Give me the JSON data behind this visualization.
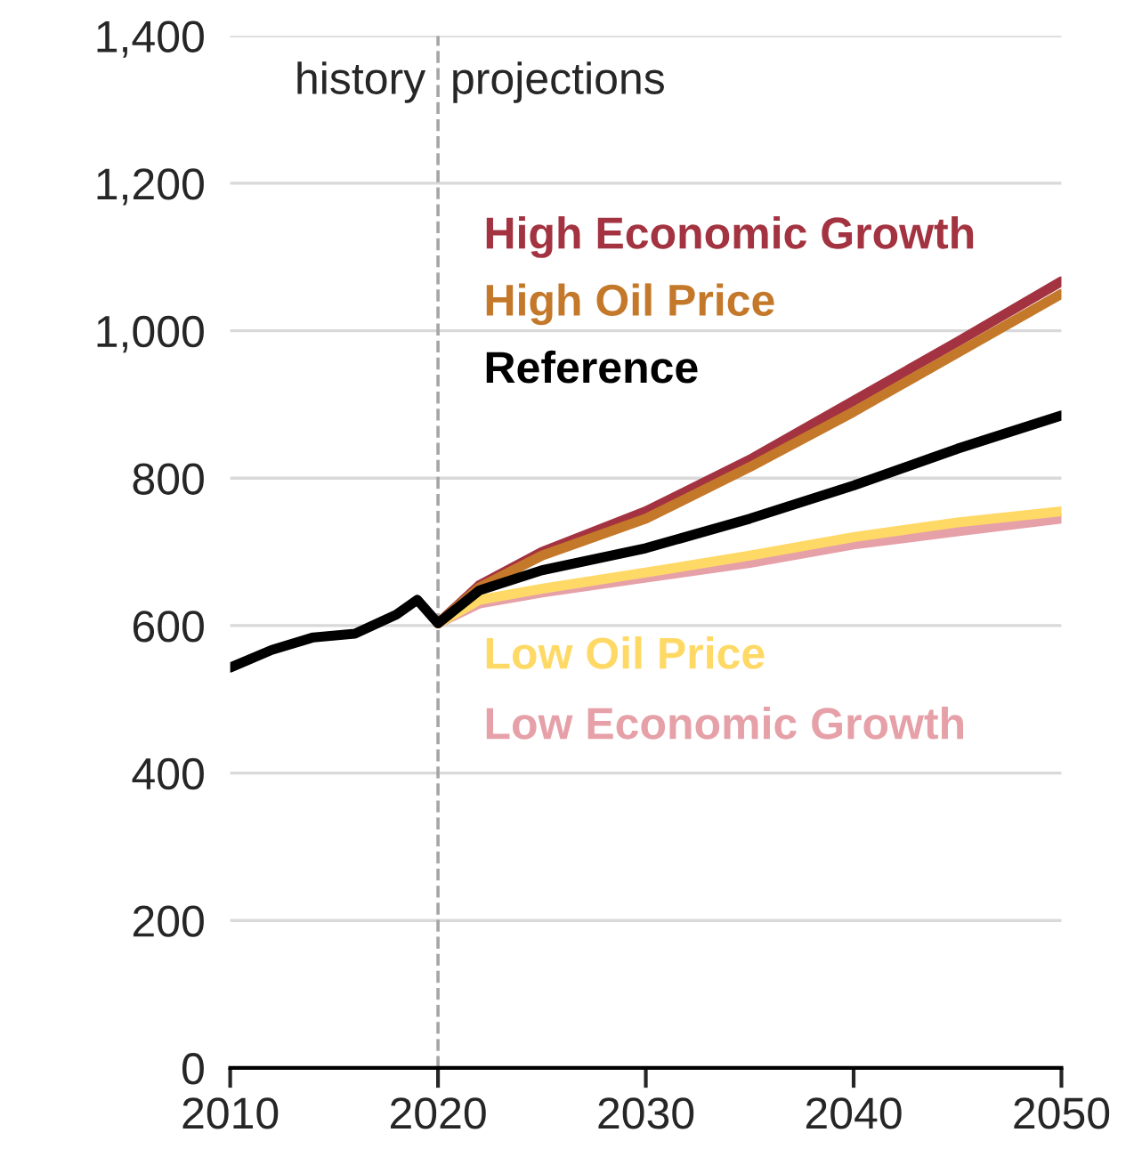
{
  "chart_data": {
    "type": "line",
    "xlim": [
      2010,
      2050
    ],
    "xticks": [
      2010,
      2020,
      2030,
      2040,
      2050
    ],
    "ylim": [
      0,
      1400
    ],
    "yticks": [
      0,
      {
        "value": 200,
        "label": "200"
      },
      {
        "value": 400,
        "label": "400"
      },
      {
        "value": 600,
        "label": "600"
      },
      {
        "value": 800,
        "label": "800"
      },
      {
        "value": 1000,
        "label": "1,000"
      },
      {
        "value": 1200,
        "label": "1,200"
      },
      {
        "value": 1400,
        "label": "1,400"
      }
    ],
    "grid": "y",
    "legend": false,
    "line_style": "solid",
    "ref_lines": [
      {
        "axis": "x",
        "value": 2020,
        "color": "#a6a6a6",
        "line_style": "dashed"
      }
    ],
    "annotations": [
      "history",
      "projections"
    ],
    "series": [
      {
        "name": "High Economic Growth",
        "color": "#a33340",
        "x": [
          2020,
          2022,
          2025,
          2030,
          2035,
          2040,
          2045,
          2050
        ],
        "values": [
          603,
          655,
          700,
          755,
          825,
          905,
          985,
          1067
        ]
      },
      {
        "name": "High Oil Price",
        "color": "#c4782a",
        "x": [
          2020,
          2022,
          2025,
          2030,
          2035,
          2040,
          2045,
          2050
        ],
        "values": [
          603,
          652,
          695,
          745,
          815,
          890,
          970,
          1050
        ]
      },
      {
        "name": "Low Economic Growth",
        "color": "#e6a0a8",
        "x": [
          2020,
          2022,
          2025,
          2030,
          2035,
          2040,
          2045,
          2050
        ],
        "values": [
          603,
          630,
          645,
          665,
          685,
          710,
          728,
          745
        ]
      },
      {
        "name": "Low Oil Price",
        "color": "#ffd966",
        "x": [
          2020,
          2022,
          2025,
          2030,
          2035,
          2040,
          2045,
          2050
        ],
        "values": [
          603,
          635,
          650,
          672,
          695,
          720,
          740,
          755
        ]
      },
      {
        "name": "Reference",
        "color": "#000000",
        "x": [
          2010,
          2012,
          2014,
          2016,
          2018,
          2019,
          2020,
          2022,
          2025,
          2030,
          2035,
          2040,
          2045,
          2050
        ],
        "values": [
          543,
          567,
          584,
          589,
          615,
          635,
          603,
          648,
          675,
          705,
          745,
          790,
          840,
          885
        ]
      }
    ]
  }
}
